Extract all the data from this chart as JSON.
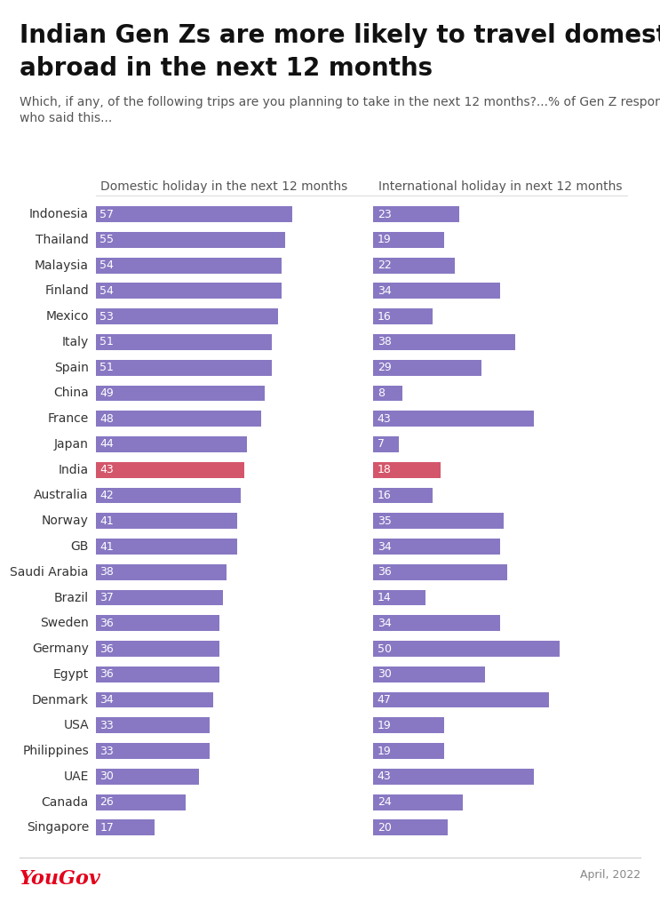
{
  "title_line1": "Indian Gen Zs are more likely to travel domestically than",
  "title_line2": "abroad in the next 12 months",
  "subtitle": "Which, if any, of the following trips are you planning to take in the next 12 months?...% of Gen Z respondents\nwho said this...",
  "col1_label": "Domestic holiday in the next 12 months",
  "col2_label": "International holiday in next 12 months",
  "countries": [
    "Indonesia",
    "Thailand",
    "Malaysia",
    "Finland",
    "Mexico",
    "Italy",
    "Spain",
    "China",
    "France",
    "Japan",
    "India",
    "Australia",
    "Norway",
    "GB",
    "Saudi Arabia",
    "Brazil",
    "Sweden",
    "Germany",
    "Egypt",
    "Denmark",
    "USA",
    "Philippines",
    "UAE",
    "Canada",
    "Singapore"
  ],
  "domestic": [
    57,
    55,
    54,
    54,
    53,
    51,
    51,
    49,
    48,
    44,
    43,
    42,
    41,
    41,
    38,
    37,
    36,
    36,
    36,
    34,
    33,
    33,
    30,
    26,
    17
  ],
  "international": [
    23,
    19,
    22,
    34,
    16,
    38,
    29,
    8,
    43,
    7,
    18,
    16,
    35,
    34,
    36,
    14,
    34,
    50,
    30,
    47,
    19,
    19,
    43,
    24,
    20
  ],
  "highlight_country": "India",
  "bar_color_normal": "#8878c3",
  "bar_color_highlight": "#d4566a",
  "text_color": "#ffffff",
  "title_fontsize": 20,
  "subtitle_fontsize": 10,
  "country_fontsize": 10,
  "bar_fontsize": 9,
  "col_label_fontsize": 10,
  "yougov_color": "#e3001b",
  "footer_color": "#888888",
  "bg_color": "#ffffff"
}
